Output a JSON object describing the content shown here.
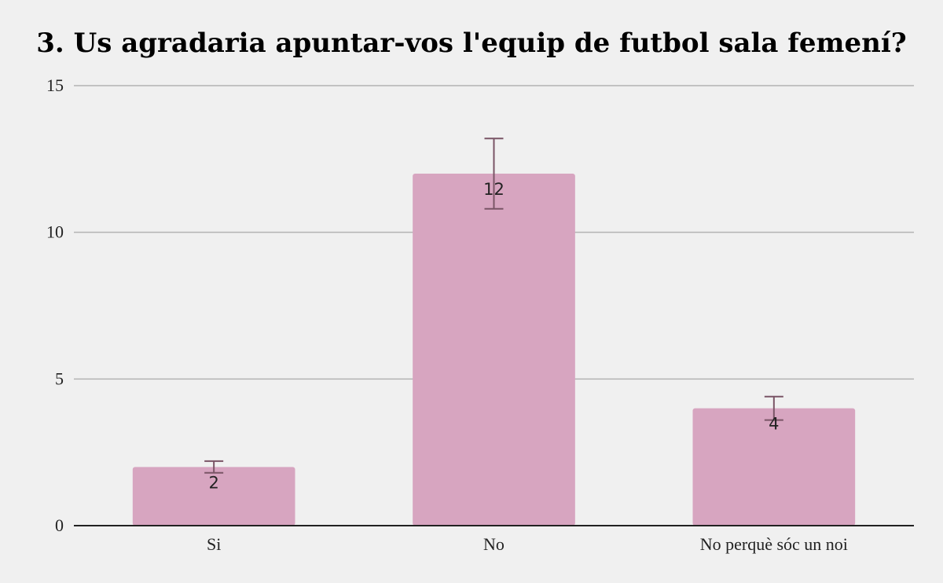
{
  "chart_data": {
    "type": "bar",
    "title": "3. Us agradaria apuntar-vos l'equip de futbol sala femení?",
    "categories": [
      "Si",
      "No",
      "No perquè sóc un noi"
    ],
    "values": [
      2,
      12,
      4
    ],
    "error_bars": [
      {
        "low": 1.8,
        "high": 2.2
      },
      {
        "low": 10.8,
        "high": 13.2
      },
      {
        "low": 3.6,
        "high": 4.4
      }
    ],
    "data_labels": [
      "2",
      "12",
      "4"
    ],
    "ylim": [
      0,
      15
    ],
    "yticks": [
      0,
      5,
      10,
      15
    ],
    "ytick_labels": [
      "0",
      "5",
      "10",
      "15"
    ],
    "xlabel": "",
    "ylabel": "",
    "grid": true,
    "colors": {
      "bar": "#d7a5c0",
      "error_bar": "#7a5566",
      "grid": "#b3b3b3",
      "axis": "#222222",
      "background": "#f0f0f0"
    }
  }
}
